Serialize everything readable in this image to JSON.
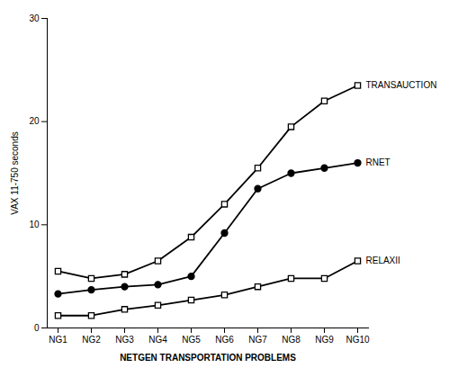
{
  "chart_data": {
    "type": "line",
    "categories": [
      "NG1",
      "NG2",
      "NG3",
      "NG4",
      "NG5",
      "NG6",
      "NG7",
      "NG8",
      "NG9",
      "NG10"
    ],
    "series": [
      {
        "name": "TRANSAUCTION",
        "color": "#000000",
        "marker": "square-open",
        "values": [
          5.5,
          4.8,
          5.2,
          6.5,
          8.8,
          12.0,
          15.5,
          19.5,
          22.0,
          23.5
        ]
      },
      {
        "name": "RNET",
        "color": "#000000",
        "marker": "circle",
        "values": [
          3.3,
          3.7,
          4.0,
          4.2,
          5.0,
          9.2,
          13.5,
          15.0,
          15.5,
          16.0
        ]
      },
      {
        "name": "RELAXII",
        "color": "#000000",
        "marker": "square-open",
        "values": [
          1.2,
          1.2,
          1.8,
          2.2,
          2.7,
          3.2,
          4.0,
          4.8,
          4.8,
          6.5
        ]
      }
    ],
    "xlabel": "NETGEN TRANSPORTATION PROBLEMS",
    "ylabel": "VAX 11-750 seconds",
    "ylim": [
      0,
      30
    ],
    "yticks": [
      0,
      10,
      20,
      30
    ],
    "grid": false
  }
}
